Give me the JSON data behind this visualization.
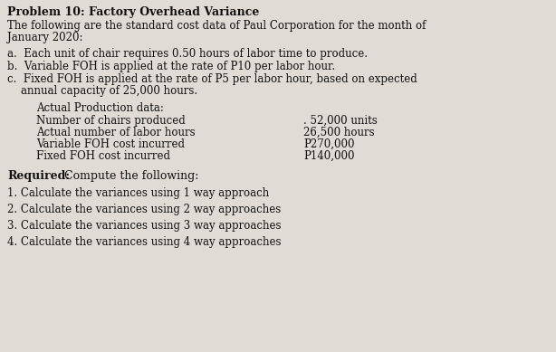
{
  "title_bold": "Problem 10: Factory Overhead Variance",
  "intro_line1": "The following are the standard cost data of Paul Corporation for the month of",
  "intro_line2": "January 2020:",
  "point_a": "a.  Each unit of chair requires 0.50 hours of labor time to produce.",
  "point_b": "b.  Variable FOH is applied at the rate of P10 per labor hour.",
  "point_c1": "c.  Fixed FOH is applied at the rate of P5 per labor hour, based on expected",
  "point_c2": "    annual capacity of 25,000 hours.",
  "actual_header": "Actual Production data:",
  "actual_labels": [
    "Number of chairs produced",
    "Actual number of labor hours",
    "Variable FOH cost incurred",
    "Fixed FOH cost incurred"
  ],
  "actual_values": [
    ". 52,000 units",
    "26,500 hours",
    "P270,000",
    "P140,000"
  ],
  "required_bold": "Required:",
  "required_rest": " Compute the following:",
  "items": [
    "1. Calculate the variances using 1 way approach",
    "2. Calculate the variances using 2 way approaches",
    "3. Calculate the variances using 3 way approaches",
    "4. Calculate the variances using 4 way approaches"
  ],
  "bg_color": "#e0dbd4",
  "text_color": "#111111",
  "font_size": 8.5,
  "title_font_size": 9.0
}
